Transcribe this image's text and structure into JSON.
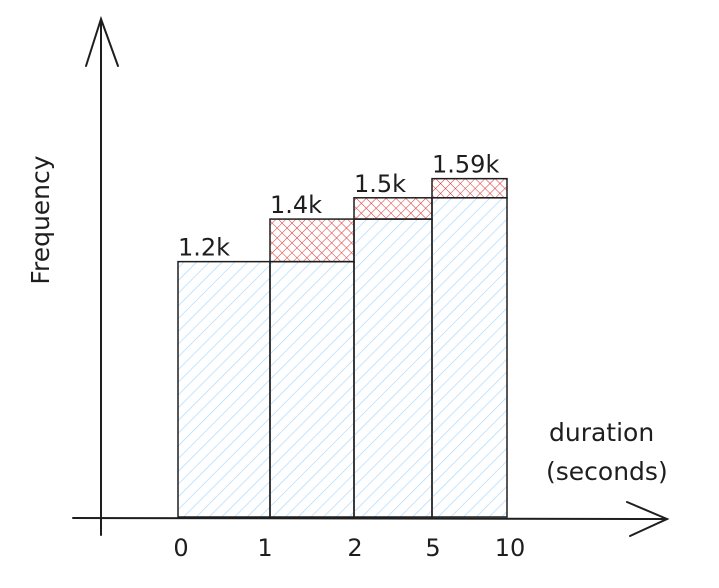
{
  "chart_data": {
    "type": "bar",
    "title": "",
    "ylabel": "Frequency",
    "xlabel_lines": [
      "duration",
      "(seconds)"
    ],
    "x_ticks": [
      "0",
      "1",
      "2",
      "5",
      "10"
    ],
    "bins": [
      {
        "from": 0,
        "to": 1,
        "base": 1200,
        "increment": 0,
        "label": "1.2k"
      },
      {
        "from": 1,
        "to": 2,
        "base": 1200,
        "increment": 200,
        "label": "1.4k"
      },
      {
        "from": 2,
        "to": 5,
        "base": 1400,
        "increment": 100,
        "label": "1.5k"
      },
      {
        "from": 5,
        "to": 10,
        "base": 1500,
        "increment": 90,
        "label": "1.59k"
      }
    ],
    "ylim": [
      0,
      1660
    ],
    "grid": false,
    "colors": {
      "base_fill": "#a5d8ff",
      "increment_fill": "#e03131",
      "stroke": "#1e1e1e"
    }
  }
}
